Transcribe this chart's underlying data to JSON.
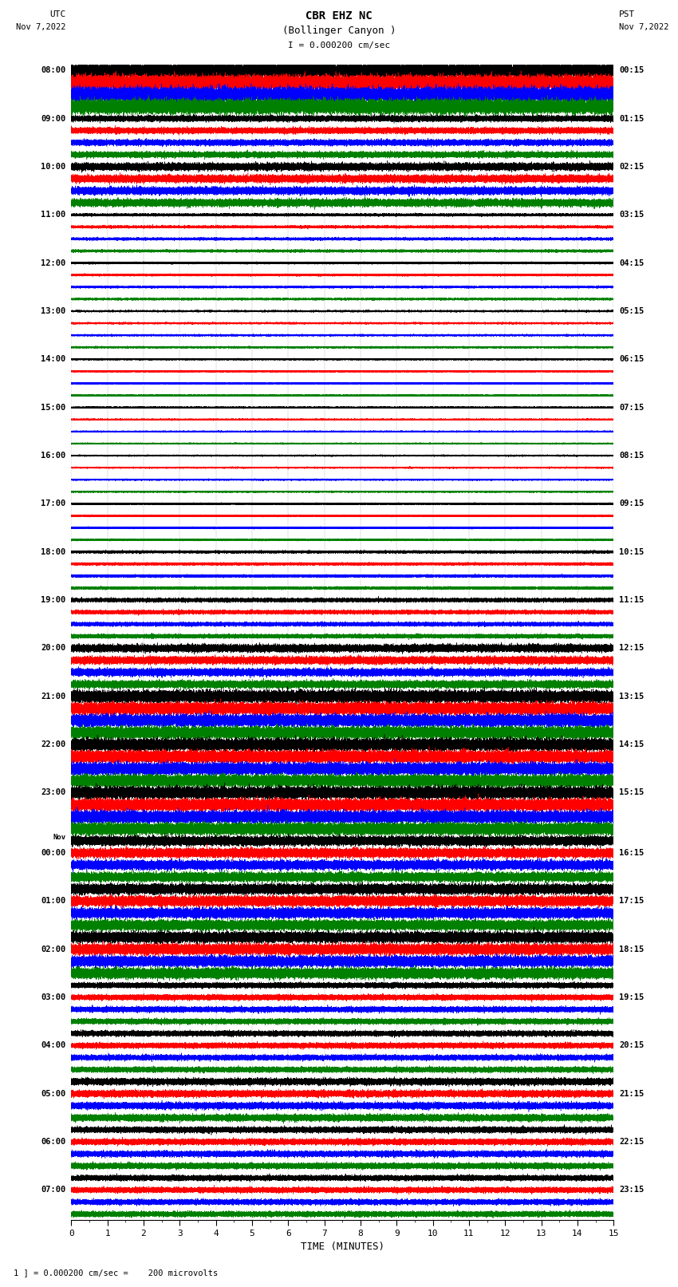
{
  "title_line1": "CBR EHZ NC",
  "title_line2": "(Bollinger Canyon )",
  "title_scale": "I = 0.000200 cm/sec",
  "left_header": "UTC",
  "left_subheader": "Nov 7,2022",
  "right_header": "PST",
  "right_subheader": "Nov 7,2022",
  "xlabel": "TIME (MINUTES)",
  "footer": "1 ] = 0.000200 cm/sec =    200 microvolts",
  "trace_colors": [
    "black",
    "red",
    "blue",
    "green"
  ],
  "n_traces": 96,
  "minutes": 15,
  "sample_rate": 200,
  "fig_width": 8.5,
  "fig_height": 16.13,
  "background_color": "white",
  "utc_labels": [
    [
      0,
      "08:00"
    ],
    [
      4,
      "09:00"
    ],
    [
      8,
      "10:00"
    ],
    [
      12,
      "11:00"
    ],
    [
      16,
      "12:00"
    ],
    [
      20,
      "13:00"
    ],
    [
      24,
      "14:00"
    ],
    [
      28,
      "15:00"
    ],
    [
      32,
      "16:00"
    ],
    [
      36,
      "17:00"
    ],
    [
      40,
      "18:00"
    ],
    [
      44,
      "19:00"
    ],
    [
      48,
      "20:00"
    ],
    [
      52,
      "21:00"
    ],
    [
      56,
      "22:00"
    ],
    [
      60,
      "23:00"
    ],
    [
      64,
      "Nov"
    ],
    [
      65,
      "00:00"
    ],
    [
      69,
      "01:00"
    ],
    [
      73,
      "02:00"
    ],
    [
      77,
      "03:00"
    ],
    [
      81,
      "04:00"
    ],
    [
      85,
      "05:00"
    ],
    [
      89,
      "06:00"
    ],
    [
      93,
      "07:00"
    ]
  ],
  "pst_labels": [
    [
      0,
      "00:15"
    ],
    [
      4,
      "01:15"
    ],
    [
      8,
      "02:15"
    ],
    [
      12,
      "03:15"
    ],
    [
      16,
      "04:15"
    ],
    [
      20,
      "05:15"
    ],
    [
      24,
      "06:15"
    ],
    [
      28,
      "07:15"
    ],
    [
      32,
      "08:15"
    ],
    [
      36,
      "09:15"
    ],
    [
      40,
      "10:15"
    ],
    [
      44,
      "11:15"
    ],
    [
      48,
      "12:15"
    ],
    [
      52,
      "13:15"
    ],
    [
      56,
      "14:15"
    ],
    [
      60,
      "15:15"
    ],
    [
      65,
      "16:15"
    ],
    [
      69,
      "17:15"
    ],
    [
      73,
      "18:15"
    ],
    [
      77,
      "19:15"
    ],
    [
      81,
      "20:15"
    ],
    [
      85,
      "21:15"
    ],
    [
      89,
      "22:15"
    ],
    [
      93,
      "23:15"
    ]
  ],
  "noise_levels": [
    0.55,
    0.55,
    0.55,
    0.55,
    0.22,
    0.22,
    0.22,
    0.22,
    0.28,
    0.28,
    0.28,
    0.28,
    0.1,
    0.1,
    0.1,
    0.1,
    0.08,
    0.08,
    0.08,
    0.08,
    0.07,
    0.07,
    0.07,
    0.07,
    0.06,
    0.06,
    0.06,
    0.06,
    0.06,
    0.06,
    0.06,
    0.06,
    0.06,
    0.06,
    0.06,
    0.06,
    0.07,
    0.07,
    0.07,
    0.07,
    0.1,
    0.1,
    0.1,
    0.1,
    0.15,
    0.15,
    0.15,
    0.15,
    0.28,
    0.28,
    0.28,
    0.28,
    0.45,
    0.45,
    0.45,
    0.45,
    0.45,
    0.45,
    0.45,
    0.45,
    0.45,
    0.45,
    0.45,
    0.45,
    0.35,
    0.35,
    0.35,
    0.35,
    0.38,
    0.38,
    0.38,
    0.38,
    0.4,
    0.4,
    0.4,
    0.4,
    0.2,
    0.2,
    0.2,
    0.2,
    0.2,
    0.2,
    0.2,
    0.2,
    0.25,
    0.25,
    0.25,
    0.25,
    0.22,
    0.22,
    0.22,
    0.22,
    0.2,
    0.2,
    0.2,
    0.2
  ]
}
